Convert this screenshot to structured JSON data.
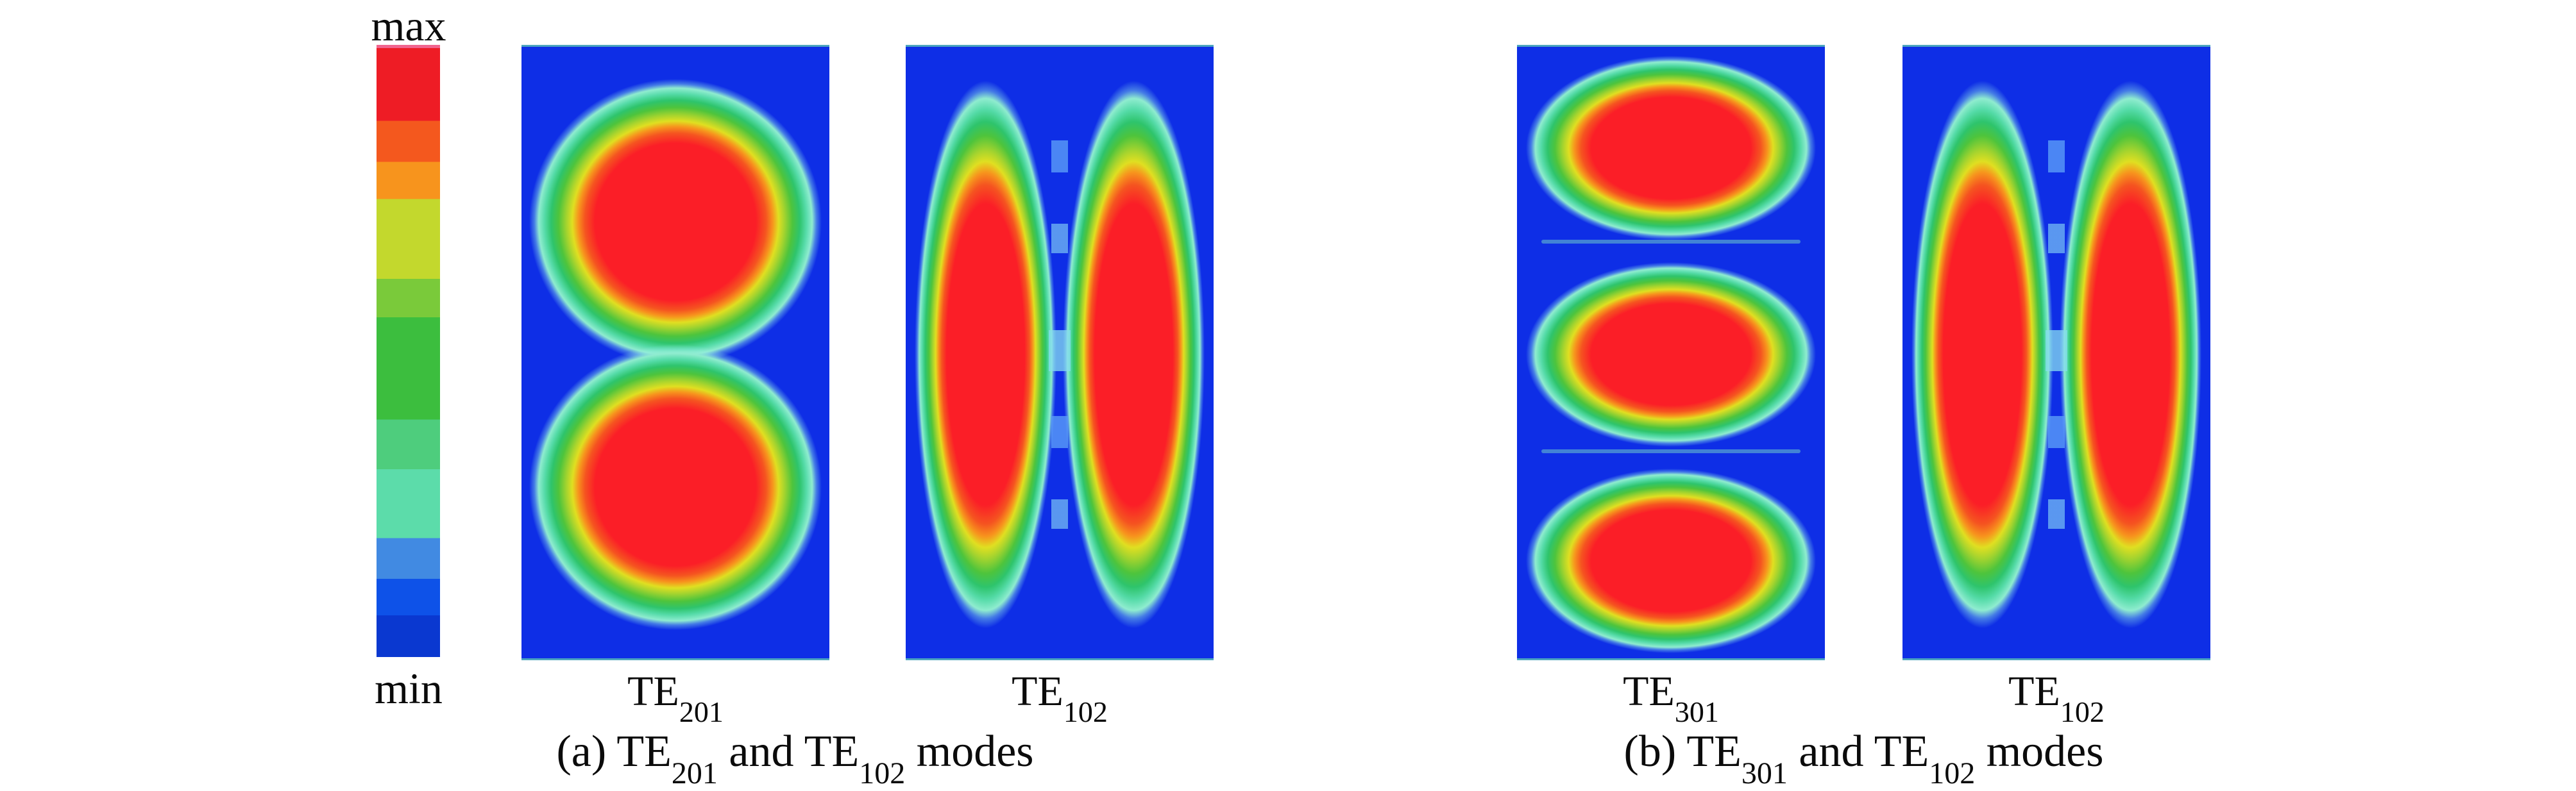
{
  "colorbar": {
    "max_label": "max",
    "min_label": "min",
    "bands_top_to_bottom": [
      {
        "color": "#f0658f",
        "pct": 0.5
      },
      {
        "color": "#ee1c25",
        "pct": 11.9
      },
      {
        "color": "#f4581e",
        "pct": 6.7
      },
      {
        "color": "#f7941d",
        "pct": 6.1
      },
      {
        "color": "#c3d82d",
        "pct": 13.0
      },
      {
        "color": "#7aca3a",
        "pct": 6.3
      },
      {
        "color": "#3cbe3e",
        "pct": 16.7
      },
      {
        "color": "#4ecd7d",
        "pct": 8.1
      },
      {
        "color": "#5cdcaa",
        "pct": 11.3
      },
      {
        "color": "#418ae2",
        "pct": 6.6
      },
      {
        "color": "#0e52e8",
        "pct": 6.0
      },
      {
        "color": "#0a38d0",
        "pct": 6.8
      }
    ]
  },
  "colors": {
    "field_background_blue": "#0e2ee6",
    "field_peak_red": "#fb1e27",
    "text": "#0b0b0b"
  },
  "panels": {
    "a": {
      "plots": [
        {
          "base": "TE",
          "sub": "201"
        },
        {
          "base": "TE",
          "sub": "102"
        }
      ],
      "caption": {
        "prefix": "(a) TE",
        "sub1": "201",
        "mid": " and TE",
        "sub2": "102",
        "suffix": " modes"
      }
    },
    "b": {
      "plots": [
        {
          "base": "TE",
          "sub": "301"
        },
        {
          "base": "TE",
          "sub": "102"
        }
      ],
      "caption": {
        "prefix": "(b) TE",
        "sub1": "301",
        "mid": " and TE",
        "sub2": "102",
        "suffix": " modes"
      }
    }
  },
  "chart_data": [
    {
      "type": "heatmap",
      "panel": "(a)",
      "title": "TE201",
      "lobes": {
        "rows": 2,
        "cols": 1
      },
      "pattern": "two high-intensity (red) lobes stacked vertically on blue (min) background, each surrounded by yellow-green-cyan rings",
      "colormap": "rainbow jet: blue=min, green=mid, red=max",
      "scale": {
        "min": "min",
        "max": "max"
      }
    },
    {
      "type": "heatmap",
      "panel": "(a)",
      "title": "TE102",
      "lobes": {
        "rows": 1,
        "cols": 2
      },
      "pattern": "two vertically elongated high-intensity (red) lobes side by side, separated by a blue seam with light-blue mesh artifacts",
      "colormap": "rainbow jet: blue=min, green=mid, red=max",
      "scale": {
        "min": "min",
        "max": "max"
      }
    },
    {
      "type": "heatmap",
      "panel": "(b)",
      "title": "TE301",
      "lobes": {
        "rows": 3,
        "cols": 1
      },
      "pattern": "three horizontally elongated high-intensity (red) lobes stacked vertically on blue (min) background",
      "colormap": "rainbow jet: blue=min, green=mid, red=max",
      "scale": {
        "min": "min",
        "max": "max"
      }
    },
    {
      "type": "heatmap",
      "panel": "(b)",
      "title": "TE102",
      "lobes": {
        "rows": 1,
        "cols": 2
      },
      "pattern": "two vertically elongated high-intensity (red) lobes side by side, separated by a blue seam with light-blue mesh artifacts",
      "colormap": "rainbow jet: blue=min, green=mid, red=max",
      "scale": {
        "min": "min",
        "max": "max"
      }
    }
  ]
}
